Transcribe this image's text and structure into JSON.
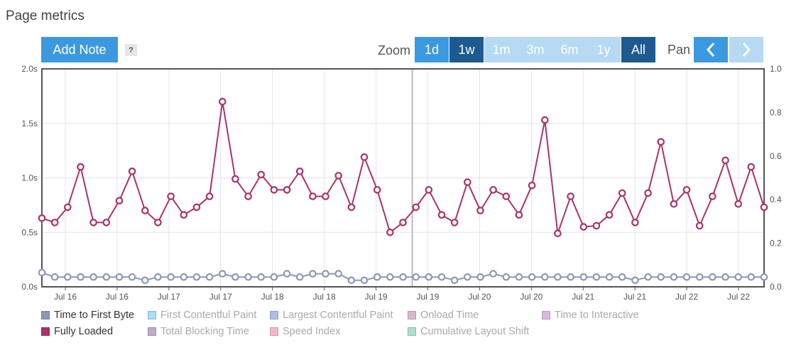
{
  "page_title": "Page metrics",
  "toolbar": {
    "add_note": "Add Note",
    "help": "?",
    "zoom_label": "Zoom",
    "pan_label": "Pan",
    "zoom_options": [
      {
        "label": "1d",
        "state": "enabled"
      },
      {
        "label": "1w",
        "state": "active"
      },
      {
        "label": "1m",
        "state": "disabled"
      },
      {
        "label": "3m",
        "state": "disabled"
      },
      {
        "label": "6m",
        "state": "disabled"
      },
      {
        "label": "1y",
        "state": "disabled"
      },
      {
        "label": "All",
        "state": "active"
      }
    ],
    "pan_left_icon": "chevron-left-icon",
    "pan_right_icon": "chevron-right-icon",
    "pan_left_state": "enabled",
    "pan_right_state": "disabled"
  },
  "chart_data": {
    "type": "line",
    "x_tick_labels": [
      "Jul 16",
      "Jul 16",
      "Jul 17",
      "Jul 17",
      "Jul 18",
      "Jul 18",
      "Jul 19",
      "Jul 19",
      "Jul 20",
      "Jul 20",
      "Jul 21",
      "Jul 21",
      "Jul 22",
      "Jul 22"
    ],
    "y_left": {
      "ticks": [
        "0.0s",
        "0.5s",
        "1.0s",
        "1.5s",
        "2.0s"
      ],
      "range": [
        0,
        2.0
      ],
      "unit": "s"
    },
    "y_right": {
      "ticks": [
        "0.0",
        "0.2",
        "0.4",
        "0.6",
        "0.8",
        "1.0"
      ],
      "range": [
        0,
        1.0
      ]
    },
    "grid": true,
    "legend_position": "bottom",
    "series": [
      {
        "name": "Fully Loaded",
        "color": "#a8336a",
        "values": [
          0.63,
          0.59,
          0.73,
          1.1,
          0.59,
          0.59,
          0.79,
          1.06,
          0.7,
          0.59,
          0.83,
          0.66,
          0.73,
          0.83,
          1.7,
          0.99,
          0.83,
          1.03,
          0.89,
          0.89,
          1.06,
          0.83,
          0.83,
          1.02,
          0.73,
          1.19,
          0.89,
          0.5,
          0.59,
          0.73,
          0.89,
          0.66,
          0.59,
          0.96,
          0.7,
          0.89,
          0.83,
          0.66,
          0.93,
          1.53,
          0.49,
          0.83,
          0.55,
          0.56,
          0.66,
          0.86,
          0.59,
          0.86,
          1.33,
          0.76,
          0.89,
          0.56,
          0.83,
          1.16,
          0.76,
          1.1,
          0.73
        ]
      },
      {
        "name": "Time to First Byte",
        "color": "#8a9ab8",
        "values": [
          0.13,
          0.09,
          0.09,
          0.09,
          0.09,
          0.09,
          0.09,
          0.09,
          0.06,
          0.09,
          0.09,
          0.09,
          0.09,
          0.09,
          0.12,
          0.09,
          0.09,
          0.09,
          0.09,
          0.12,
          0.09,
          0.12,
          0.12,
          0.12,
          0.06,
          0.06,
          0.09,
          0.09,
          0.09,
          0.09,
          0.09,
          0.09,
          0.06,
          0.09,
          0.09,
          0.12,
          0.09,
          0.09,
          0.09,
          0.09,
          0.09,
          0.09,
          0.09,
          0.09,
          0.09,
          0.09,
          0.06,
          0.09,
          0.09,
          0.09,
          0.09,
          0.09,
          0.09,
          0.09,
          0.09,
          0.09,
          0.09
        ]
      }
    ]
  },
  "legend": [
    {
      "label": "Time to First Byte",
      "color": "#8a9ab8",
      "active": true
    },
    {
      "label": "First Contentful Paint",
      "color": "#a9dcf5",
      "active": false
    },
    {
      "label": "Largest Contentful Paint",
      "color": "#a8c0e8",
      "active": false
    },
    {
      "label": "Onload Time",
      "color": "#d8b8cc",
      "active": false
    },
    {
      "label": "Time to Interactive",
      "color": "#d6b8e0",
      "active": false
    },
    {
      "label": "Fully Loaded",
      "color": "#a8336a",
      "active": true
    },
    {
      "label": "Total Blocking Time",
      "color": "#c0aac6",
      "active": false
    },
    {
      "label": "Speed Index",
      "color": "#f4b6d0",
      "active": false
    },
    {
      "label": "Cumulative Layout Shift",
      "color": "#a8e0c8",
      "active": false
    }
  ]
}
